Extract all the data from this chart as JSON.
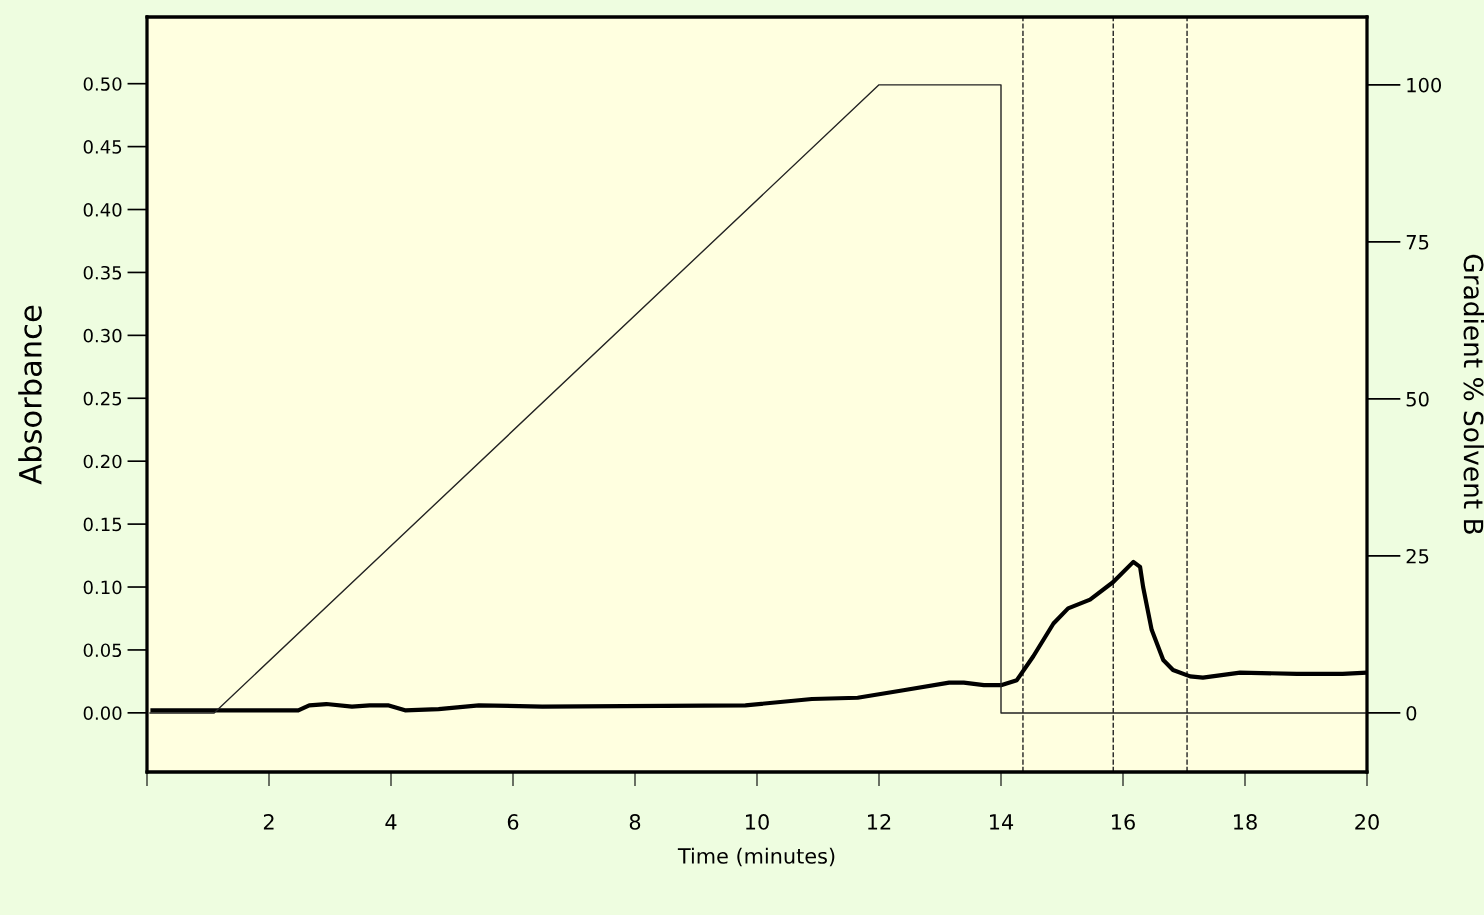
{
  "chart_data": {
    "type": "line",
    "xlabel": "Time (minutes)",
    "ylabel": "Absorbance",
    "y2label": "Gradient % Solvent B",
    "xlim": [
      0,
      20
    ],
    "xticks": [
      {
        "value": 0,
        "label": null
      },
      2,
      4,
      6,
      8,
      10,
      12,
      14,
      16,
      18,
      20
    ],
    "ylim": [
      -0.047,
      0.553
    ],
    "yticks": [
      {
        "value": 0,
        "label": "0.00"
      },
      0.05,
      {
        "value": 0.1,
        "label": "0.10"
      },
      0.15,
      {
        "value": 0.2,
        "label": "0.20"
      },
      0.25,
      {
        "value": 0.3,
        "label": "0.30"
      },
      0.35,
      {
        "value": 0.4,
        "label": "0.40"
      },
      0.45,
      {
        "value": 0.5,
        "label": "0.50"
      }
    ],
    "y2lim": [
      -9.4,
      110.8
    ],
    "y2ticks": [
      0,
      25,
      50,
      75,
      100
    ],
    "grid": false,
    "marker": "none",
    "series": [
      {
        "color": "#000000",
        "x": [
          0.09,
          2.48,
          2.66,
          2.94,
          3.36,
          3.65,
          3.95,
          4.23,
          4.78,
          5.44,
          6.48,
          9.81,
          10.9,
          11.65,
          12.4,
          13.15,
          13.39,
          13.72,
          14.0,
          14.26,
          14.53,
          14.86,
          15.1,
          15.46,
          15.84,
          16.17,
          16.28,
          16.33,
          16.47,
          16.66,
          16.82,
          17.1,
          17.31,
          17.92,
          18.85,
          19.6,
          20
        ],
        "values": [
          0.002,
          0.002,
          0.006,
          0.007,
          0.005,
          0.006,
          0.006,
          0.002,
          0.003,
          0.006,
          0.005,
          0.006,
          0.011,
          0.012,
          0.018,
          0.024,
          0.024,
          0.022,
          0.022,
          0.026,
          0.045,
          0.071,
          0.083,
          0.09,
          0.104,
          0.12,
          0.116,
          0.1,
          0.066,
          0.042,
          0.034,
          0.029,
          0.028,
          0.032,
          0.031,
          0.031,
          0.032
        ]
      },
      {
        "color": "#222222",
        "axis": "y2",
        "x": [
          0.05,
          1.1,
          12,
          14,
          14,
          20
        ],
        "values": [
          0,
          0,
          100,
          100,
          0,
          0
        ]
      }
    ],
    "ref_lines": [
      {
        "axis": "x",
        "value": 14.36,
        "line_style": "dashed",
        "color": "#222222"
      },
      {
        "axis": "x",
        "value": 15.84,
        "line_style": "dashed",
        "color": "#222222"
      },
      {
        "axis": "x",
        "value": 17.05,
        "line_style": "dashed",
        "color": "#222222"
      }
    ]
  }
}
